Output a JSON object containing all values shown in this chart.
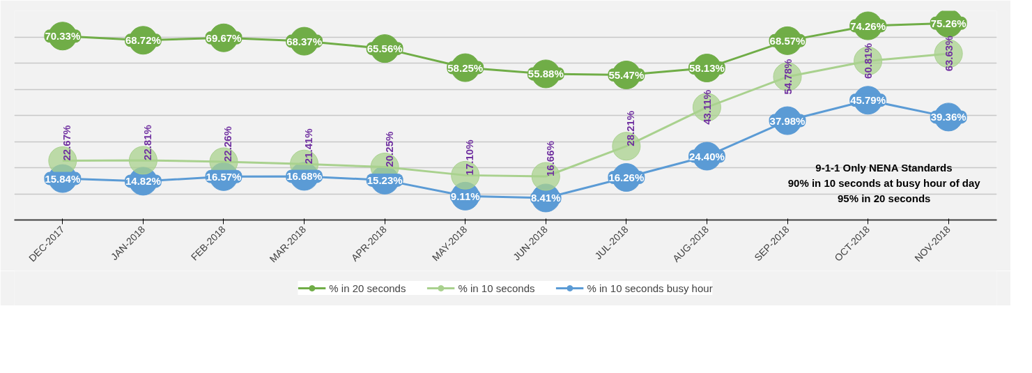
{
  "chart_data": {
    "type": "line",
    "categories": [
      "DEC-2017",
      "JAN-2018",
      "FEB-2018",
      "MAR-2018",
      "APR-2018",
      "MAY-2018",
      "JUN-2018",
      "JUL-2018",
      "AUG-2018",
      "SEP-2018",
      "OCT-2018",
      "NOV-2018"
    ],
    "series": [
      {
        "name": "% in 20 seconds",
        "color": "#70ad47",
        "values": [
          70.33,
          68.72,
          69.67,
          68.37,
          65.56,
          58.25,
          55.88,
          55.47,
          58.13,
          68.57,
          74.26,
          75.26
        ],
        "value_labels": [
          "70.33%",
          "68.72%",
          "69.67%",
          "68.37%",
          "65.56%",
          "58.25%",
          "55.88%",
          "55.47%",
          "58.13%",
          "68.57%",
          "74.26%",
          "75.26%"
        ]
      },
      {
        "name": "% in 10 seconds",
        "color": "#a9d18e",
        "values": [
          22.67,
          22.81,
          22.26,
          21.41,
          20.25,
          17.1,
          16.66,
          28.21,
          43.11,
          54.78,
          60.81,
          63.63
        ],
        "value_labels": [
          "22.67%",
          "22.81%",
          "22.26%",
          "21.41%",
          "20.25%",
          "17.10%",
          "16.66%",
          "28.21%",
          "43.11%",
          "54.78%",
          "60.81%",
          "63.63%"
        ]
      },
      {
        "name": "% in 10 seconds busy hour",
        "color": "#5b9bd5",
        "values": [
          15.84,
          14.82,
          16.57,
          16.68,
          15.23,
          9.11,
          8.41,
          16.26,
          24.4,
          37.98,
          45.79,
          39.36
        ],
        "value_labels": [
          "15.84%",
          "14.82%",
          "16.57%",
          "16.68%",
          "15.23%",
          "9.11%",
          "8.41%",
          "16.26%",
          "24.40%",
          "37.98%",
          "45.79%",
          "39.36%"
        ]
      }
    ],
    "ylim": [
      0,
      80
    ],
    "yticks": [
      {
        "value": 10,
        "label": null
      },
      {
        "value": 20,
        "label": null
      },
      {
        "value": 30,
        "label": null
      },
      {
        "value": 40,
        "label": null
      },
      {
        "value": 50,
        "label": null
      },
      {
        "value": 60,
        "label": null
      },
      {
        "value": 70,
        "label": null
      },
      {
        "value": 80,
        "label": null
      }
    ],
    "tick_labels": "x",
    "grid": "y",
    "legend": "bottom",
    "marker": "circle",
    "line_style": "solid",
    "annotations": [
      "9-1-1 Only NENA Standards",
      "90% in 10 seconds at busy hour of day",
      "95% in 20 seconds"
    ]
  }
}
